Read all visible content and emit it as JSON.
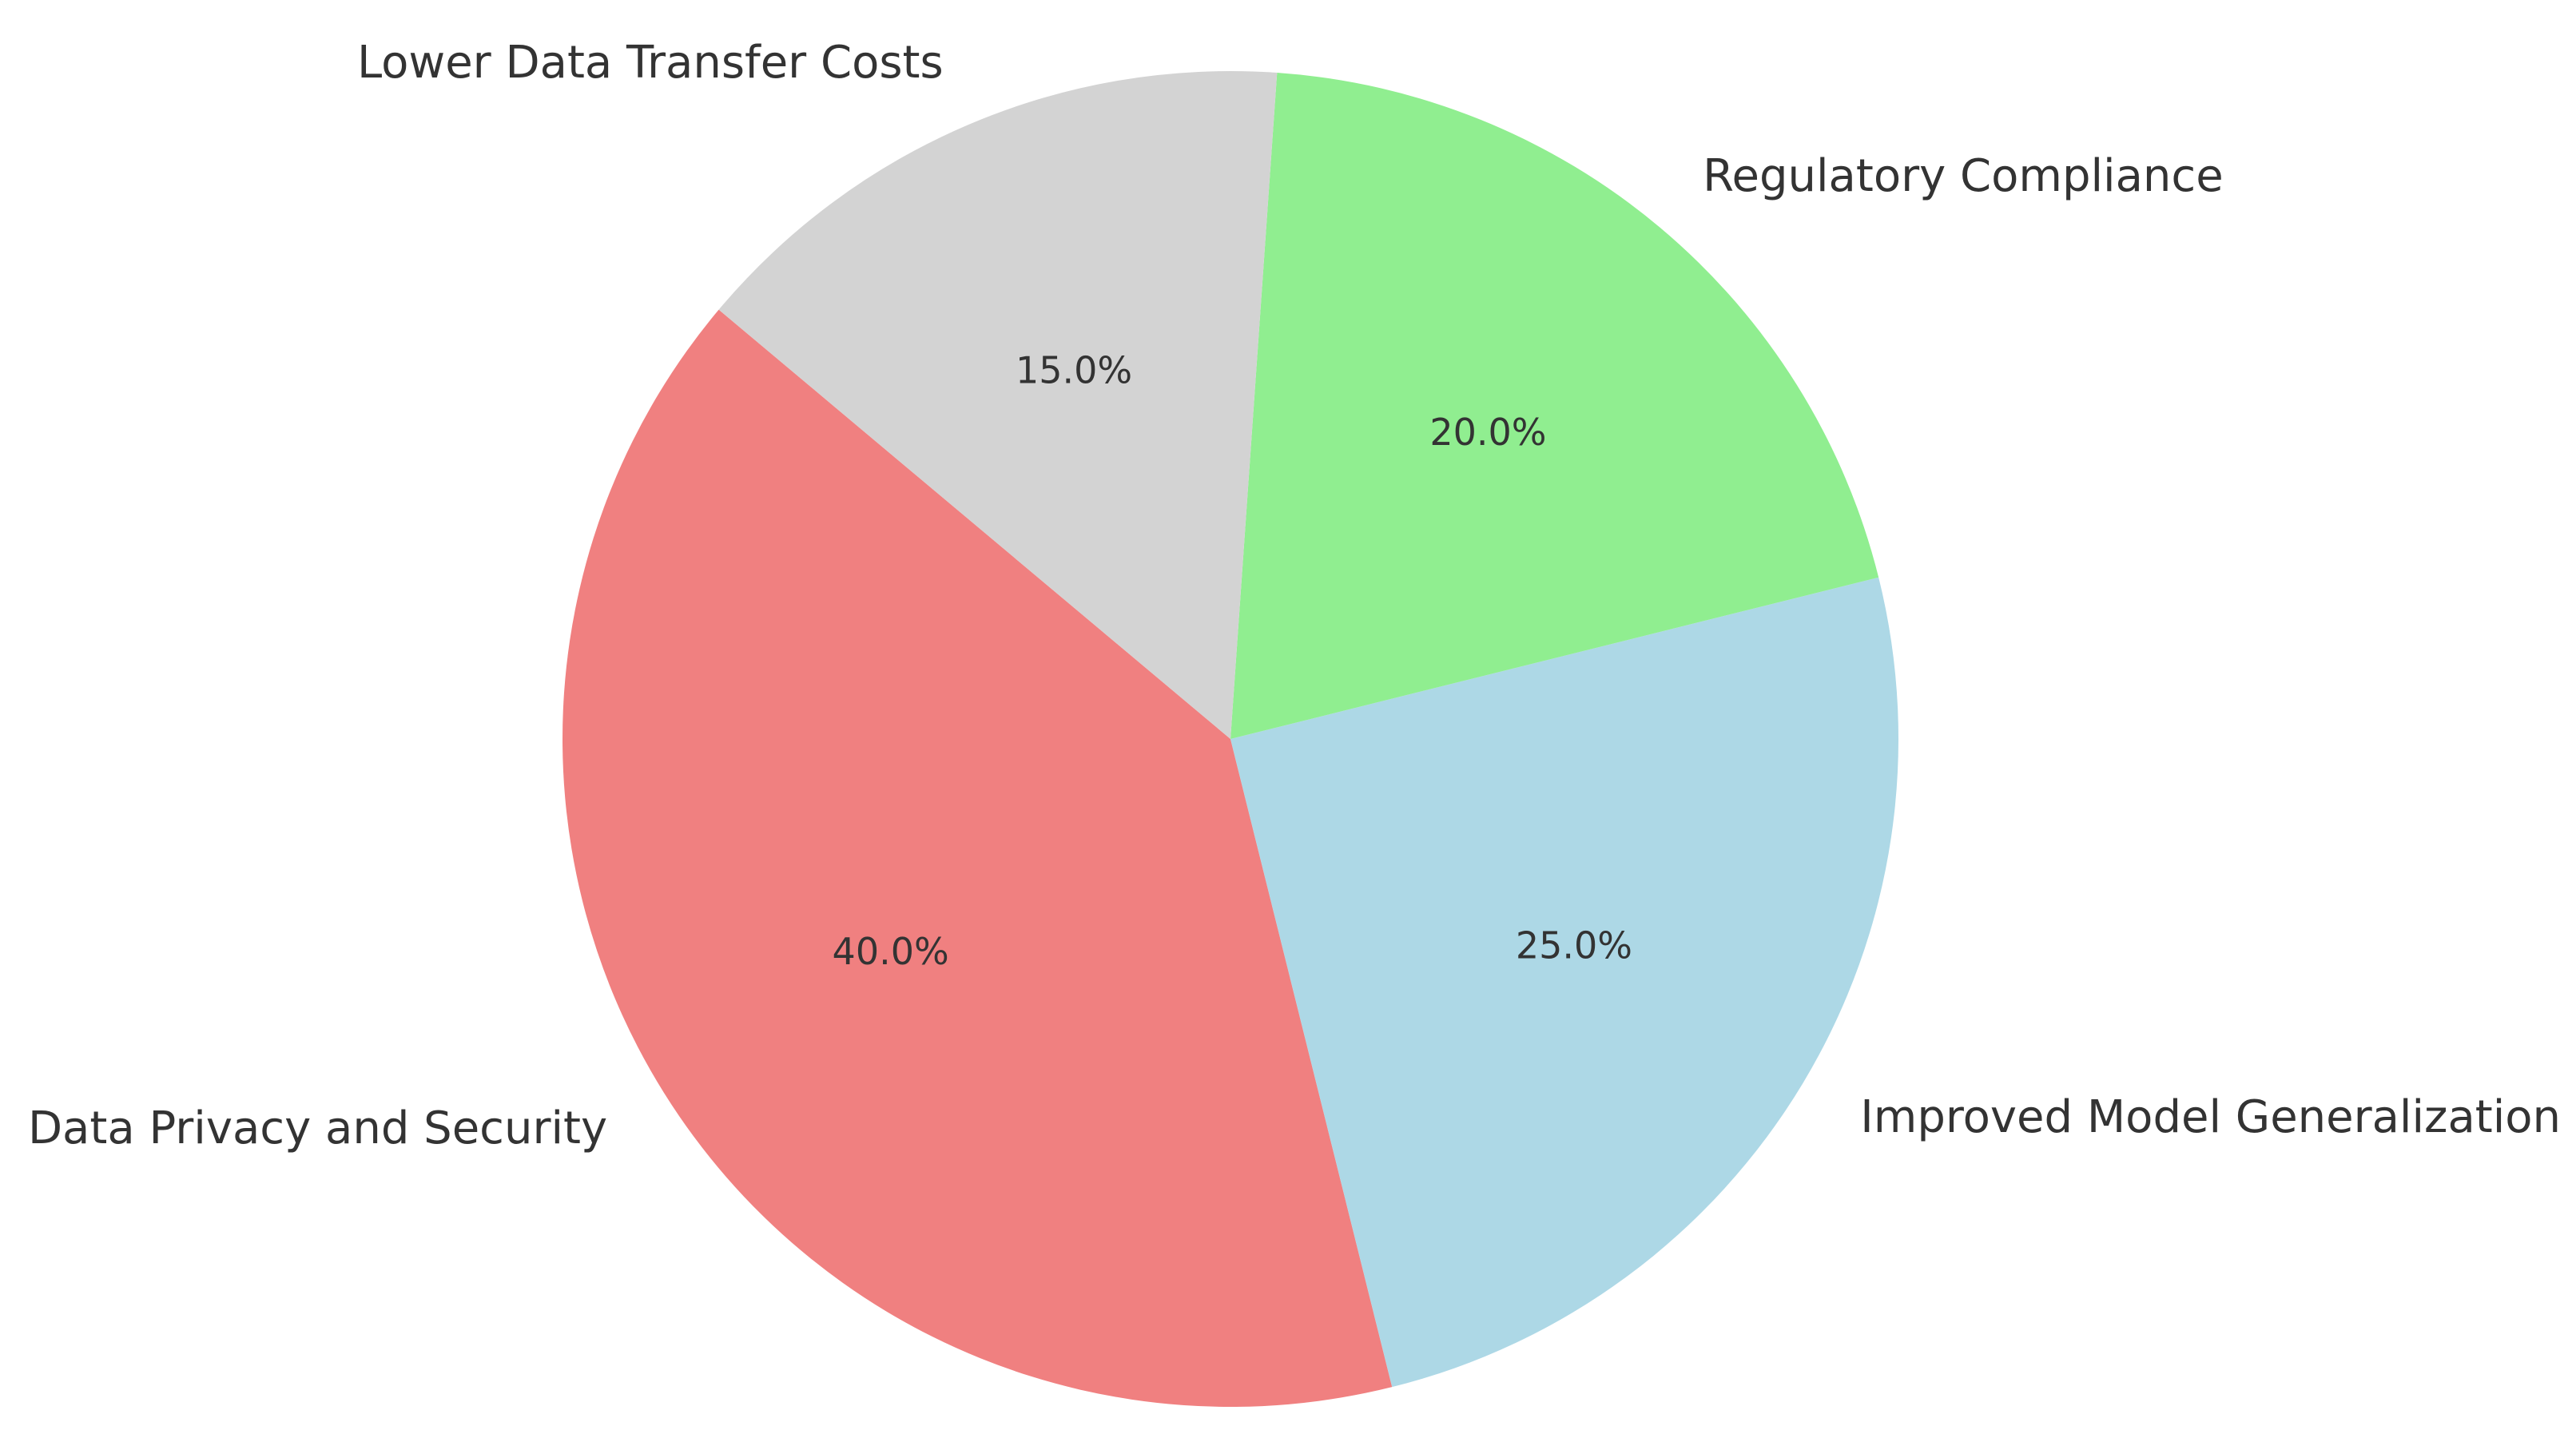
{
  "chart_data": {
    "type": "pie",
    "title": "",
    "slices": [
      {
        "label": "Data Privacy and Security",
        "value": 40.0,
        "pct_label": "40.0%",
        "color": "#F08080"
      },
      {
        "label": "Improved Model Generalization",
        "value": 25.0,
        "pct_label": "25.0%",
        "color": "#ADD8E6"
      },
      {
        "label": "Regulatory Compliance",
        "value": 20.0,
        "pct_label": "20.0%",
        "color": "#90EE90"
      },
      {
        "label": "Lower Data Transfer Costs",
        "value": 15.0,
        "pct_label": "15.0%",
        "color": "#D3D3D3"
      }
    ],
    "start_angle_deg": 140,
    "direction": "counterclockwise"
  }
}
